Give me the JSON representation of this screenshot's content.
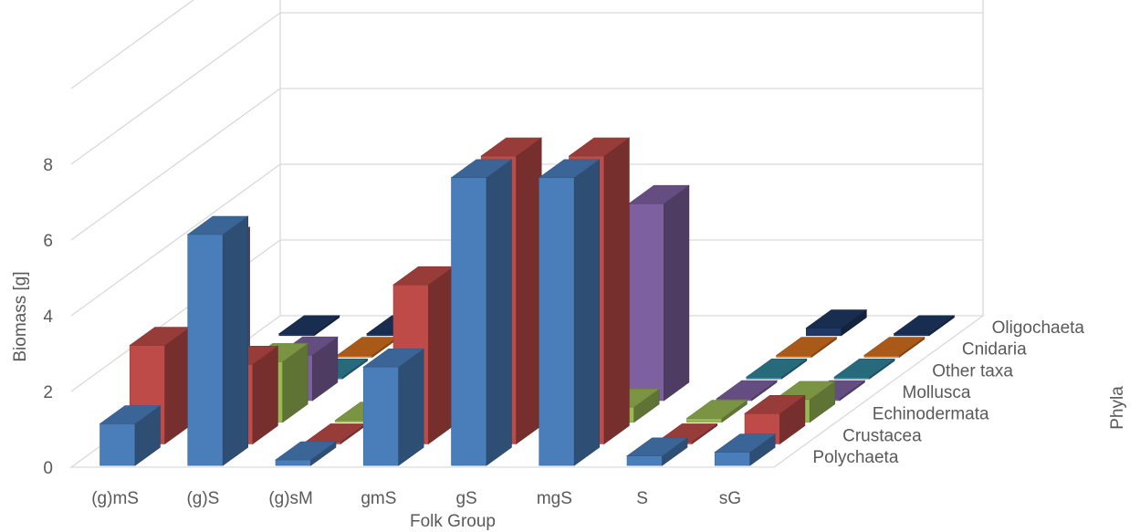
{
  "chart_data": {
    "type": "bar",
    "subtype": "3d-column",
    "title": "",
    "xlabel": "Folk Group",
    "ylabel": "Biomass [g]",
    "zlabel": "Phyla",
    "ylim": [
      0,
      8
    ],
    "yticks": [
      "0",
      "2",
      "4",
      "6",
      "8"
    ],
    "grid": true,
    "categories": [
      "(g)mS",
      "(g)S",
      "(g)sM",
      "gmS",
      "gS",
      "mgS",
      "S",
      "sG"
    ],
    "series": [
      {
        "name": "Polychaeta",
        "color": "#4A7EBB",
        "values": [
          1.1,
          6.1,
          0.15,
          2.6,
          7.6,
          7.6,
          0.25,
          0.35
        ]
      },
      {
        "name": "Crustacea",
        "color": "#BE4B48",
        "values": [
          2.6,
          2.1,
          0.05,
          4.2,
          7.6,
          7.6,
          0.05,
          0.8
        ]
      },
      {
        "name": "Echinodermata",
        "color": "#98B954",
        "values": [
          0.6,
          1.6,
          0.05,
          2.6,
          0.4,
          0.4,
          0.1,
          0.6
        ]
      },
      {
        "name": "Mollusca",
        "color": "#7D60A0",
        "values": [
          4.1,
          1.2,
          0.0,
          0.0,
          0.0,
          5.2,
          0.05,
          0.05
        ]
      },
      {
        "name": "Other taxa",
        "color": "#31849B",
        "values": [
          0.0,
          0.05,
          0.0,
          0.0,
          0.0,
          0.0,
          0.05,
          0.05
        ]
      },
      {
        "name": "Cnidaria",
        "color": "#D3701F",
        "values": [
          0.0,
          0.05,
          0.05,
          0.0,
          0.05,
          0.0,
          0.05,
          0.05
        ]
      },
      {
        "name": "Oligochaeta",
        "color": "#1F3864",
        "values": [
          0.05,
          0.05,
          0.05,
          0.0,
          0.0,
          0.0,
          0.2,
          0.05
        ]
      }
    ]
  }
}
